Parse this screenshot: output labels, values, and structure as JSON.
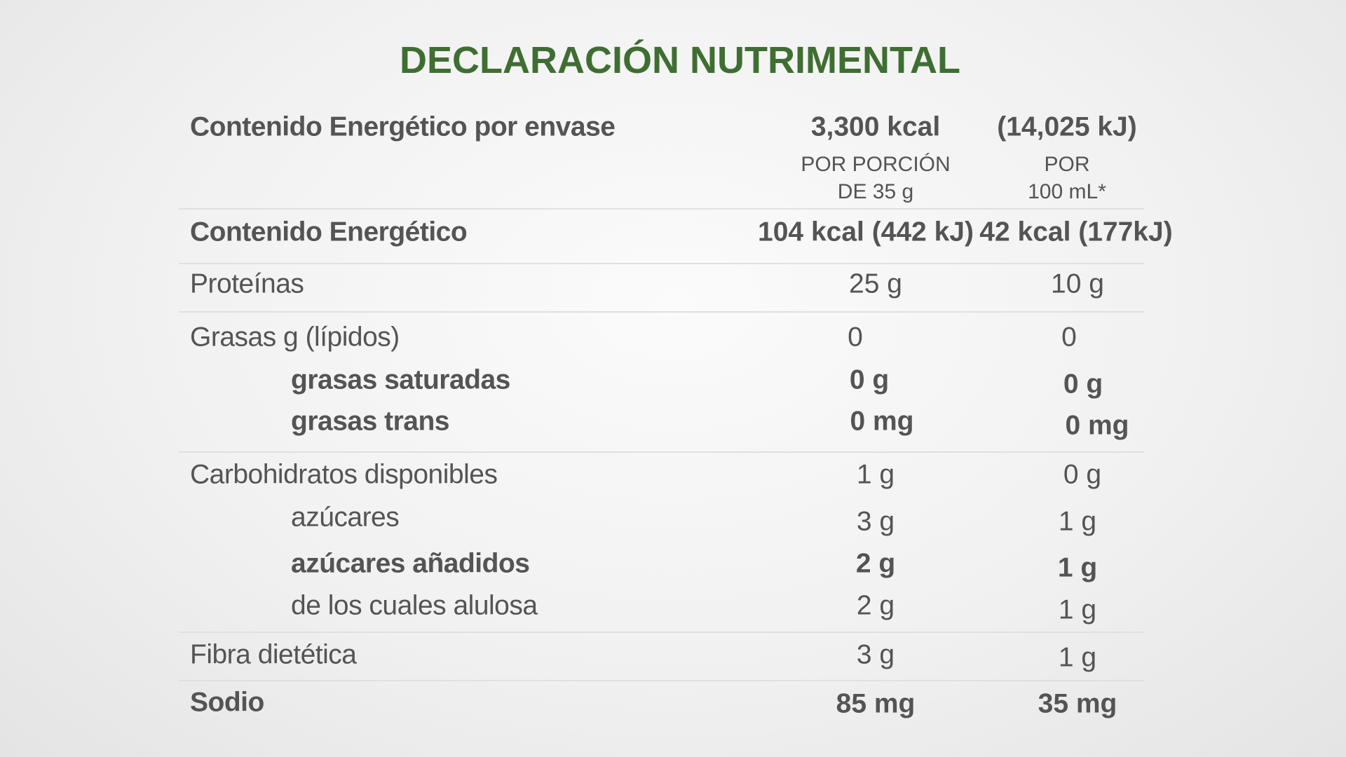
{
  "title": "DECLARACIÓN NUTRIMENTAL",
  "header": {
    "label": "Contenido Energético por envase",
    "kcal": "3,300 kcal",
    "kj": "(14,025 kJ)",
    "col1_line1": "POR PORCIÓN",
    "col1_line2": "DE 35 g",
    "col2_line1": "POR",
    "col2_line2": "100 mL*"
  },
  "rows": [
    {
      "label": "Contenido Energético",
      "per_portion": "104 kcal (442 kJ)",
      "per_100ml": "42 kcal (177kJ)"
    },
    {
      "label": "Proteínas",
      "per_portion": "25 g",
      "per_100ml": "10 g"
    },
    {
      "label": "Grasas g (lípidos)",
      "per_portion": "0",
      "per_100ml": "0"
    },
    {
      "label": "grasas saturadas",
      "per_portion": "0 g",
      "per_100ml": "0 g"
    },
    {
      "label": "grasas trans",
      "per_portion": "0 mg",
      "per_100ml": "0 mg"
    },
    {
      "label": "Carbohidratos disponibles",
      "per_portion": "1 g",
      "per_100ml": "0 g"
    },
    {
      "label": "azúcares",
      "per_portion": "3 g",
      "per_100ml": "1 g"
    },
    {
      "label": "azúcares añadidos",
      "per_portion": "2 g",
      "per_100ml": "1 g"
    },
    {
      "label": "de los cuales alulosa",
      "per_portion": "2 g",
      "per_100ml": "1 g"
    },
    {
      "label": "Fibra dietética",
      "per_portion": "3 g",
      "per_100ml": "1 g"
    },
    {
      "label": "Sodio",
      "per_portion": "85 mg",
      "per_100ml": "35 mg"
    }
  ],
  "colors": {
    "title": "#3f6e32",
    "text": "#545454",
    "divider": "#e0e0e0"
  }
}
